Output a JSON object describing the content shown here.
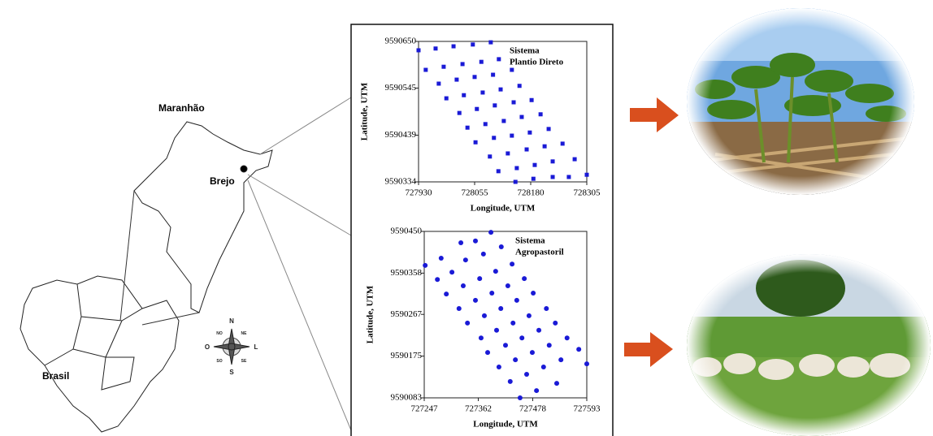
{
  "map": {
    "state": "Maranhão",
    "site": "Brejo",
    "country": "Brasil",
    "compass": {
      "north": "N",
      "south": "S",
      "east": "L",
      "west": "O",
      "northeast": "NE",
      "northwest": "NO",
      "southeast": "SE",
      "southwest": "SO"
    }
  },
  "chart_data": [
    {
      "type": "scatter",
      "marker": "square",
      "color": "#1a1ad6",
      "annotation": [
        "Sistema",
        "Plantio Direto"
      ],
      "xlabel": "Longitude, UTM",
      "ylabel": "Latitude, UTM",
      "xlim": [
        727930,
        728305
      ],
      "xticks": [
        727930,
        728055,
        728180,
        728305
      ],
      "ylim": [
        9590334,
        9590650
      ],
      "yticks": [
        9590334,
        9590439,
        9590545,
        9590650
      ],
      "x": [
        727930,
        727968,
        728008,
        728051,
        728091,
        727946,
        727986,
        728028,
        728070,
        728109,
        727975,
        728015,
        728055,
        728096,
        728138,
        727992,
        728031,
        728073,
        728113,
        728155,
        728021,
        728060,
        728100,
        728142,
        728182,
        728039,
        728079,
        728120,
        728160,
        728202,
        728057,
        728098,
        728138,
        728178,
        728220,
        728089,
        728129,
        728171,
        728211,
        728251,
        728108,
        728149,
        728189,
        728229,
        728278,
        728146,
        728186,
        728229,
        728265,
        728305
      ],
      "values": [
        9590630,
        9590634,
        9590639,
        9590643,
        9590648,
        9590586,
        9590593,
        9590599,
        9590604,
        9590610,
        9590555,
        9590564,
        9590570,
        9590575,
        9590586,
        9590522,
        9590529,
        9590535,
        9590542,
        9590550,
        9590489,
        9590498,
        9590506,
        9590513,
        9590518,
        9590456,
        9590464,
        9590471,
        9590480,
        9590486,
        9590423,
        9590433,
        9590438,
        9590445,
        9590453,
        9590391,
        9590398,
        9590407,
        9590414,
        9590420,
        9590358,
        9590365,
        9590372,
        9590380,
        9590385,
        9590334,
        9590341,
        9590345,
        9590345,
        9590350
      ]
    },
    {
      "type": "scatter",
      "marker": "circle",
      "color": "#1a1ad6",
      "annotation": [
        "Sistema",
        "Agropastoril"
      ],
      "xlabel": "Longitude, UTM",
      "ylabel": "Latitude, UTM",
      "xlim": [
        727247,
        727593
      ],
      "xticks": [
        727247,
        727362,
        727478,
        727593
      ],
      "ylim": [
        9590083,
        9590450
      ],
      "yticks": [
        9590083,
        9590175,
        9590267,
        9590358,
        9590450
      ],
      "x": [
        727249,
        727283,
        727325,
        727356,
        727389,
        727275,
        727306,
        727335,
        727373,
        727411,
        727294,
        727330,
        727365,
        727399,
        727434,
        727321,
        727356,
        727391,
        727425,
        727460,
        727339,
        727375,
        727410,
        727444,
        727479,
        727368,
        727401,
        727436,
        727470,
        727507,
        727382,
        727420,
        727455,
        727491,
        727526,
        727406,
        727441,
        727477,
        727513,
        727551,
        727430,
        727465,
        727501,
        727538,
        727576,
        727451,
        727486,
        727529,
        727593
      ],
      "values": [
        9590375,
        9590391,
        9590425,
        9590429,
        9590448,
        9590344,
        9590360,
        9590387,
        9590400,
        9590416,
        9590312,
        9590330,
        9590346,
        9590362,
        9590378,
        9590280,
        9590298,
        9590314,
        9590330,
        9590346,
        9590248,
        9590264,
        9590280,
        9590298,
        9590314,
        9590215,
        9590232,
        9590248,
        9590264,
        9590280,
        9590183,
        9590199,
        9590215,
        9590232,
        9590248,
        9590151,
        9590167,
        9590183,
        9590199,
        9590215,
        9590119,
        9590135,
        9590151,
        9590167,
        9590190,
        9590083,
        9590099,
        9590115,
        9590158
      ]
    }
  ]
}
